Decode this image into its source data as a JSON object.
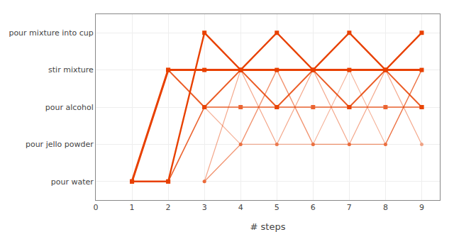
{
  "chart_data": {
    "type": "line",
    "xlabel": "# steps",
    "color": "#e84000",
    "grid": true,
    "xlim": [
      0,
      9.5
    ],
    "xticks": [
      0,
      1,
      2,
      3,
      4,
      5,
      6,
      7,
      8,
      9
    ],
    "ylim": [
      -0.5,
      4.5
    ],
    "yticks": [
      {
        "value": 0,
        "label": "pour water"
      },
      {
        "value": 1,
        "label": "pour jello powder"
      },
      {
        "value": 2,
        "label": "pour alcohol"
      },
      {
        "value": 3,
        "label": "stir mixture"
      },
      {
        "value": 4,
        "label": "pour mixture into cup"
      }
    ],
    "series": [
      {
        "x": [
          1,
          2,
          3,
          4,
          5,
          6,
          7,
          8,
          9
        ],
        "values": [
          0,
          3,
          3,
          3,
          3,
          3,
          3,
          3,
          3
        ],
        "marker": "square"
      },
      {
        "x": [
          1,
          2,
          3,
          4,
          5,
          6,
          7,
          8,
          9
        ],
        "values": [
          0,
          0,
          4,
          3,
          4,
          3,
          4,
          3,
          4
        ],
        "marker": "square"
      },
      {
        "x": [
          2,
          3,
          4,
          5,
          6,
          7,
          8,
          9
        ],
        "values": [
          3,
          2,
          3,
          2,
          3,
          2,
          3,
          2
        ],
        "marker": "square"
      },
      {
        "x": [
          1,
          2,
          3,
          4,
          5,
          6,
          7,
          8,
          9
        ],
        "values": [
          0,
          0,
          2,
          2,
          2,
          2,
          2,
          2,
          2
        ],
        "marker": "square"
      },
      {
        "x": [
          3,
          4,
          5,
          6,
          7,
          8,
          9
        ],
        "values": [
          0,
          1,
          3,
          1,
          1,
          1,
          3
        ],
        "marker": "circle"
      },
      {
        "x": [
          3,
          4,
          5,
          6,
          7,
          8,
          9
        ],
        "values": [
          0,
          3,
          1,
          3,
          1,
          3,
          1
        ],
        "marker": "circle"
      },
      {
        "x": [
          3,
          4,
          5,
          6,
          7,
          8,
          9
        ],
        "values": [
          2,
          1,
          1,
          1,
          3,
          1,
          3
        ],
        "marker": "circle"
      }
    ]
  }
}
